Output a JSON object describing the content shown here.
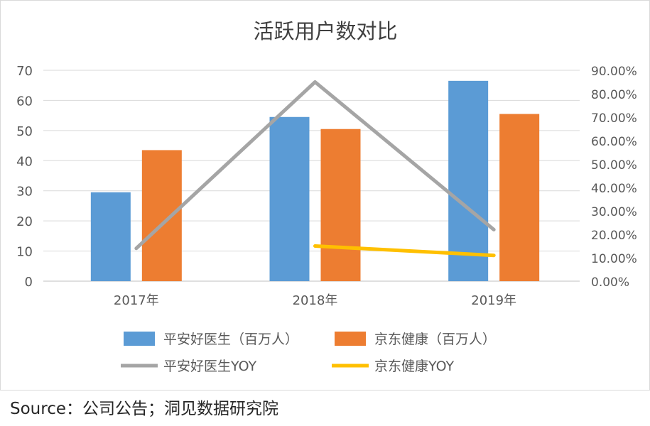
{
  "chart_data": {
    "type": "bar",
    "title": "活跃用户数对比",
    "categories": [
      "2017年",
      "2018年",
      "2019年"
    ],
    "series": [
      {
        "name": "平安好医生（百万人）",
        "kind": "bar",
        "axis": "left",
        "color": "#5b9bd5",
        "values": [
          29.5,
          54.5,
          66.5
        ]
      },
      {
        "name": "京东健康（百万人）",
        "kind": "bar",
        "axis": "left",
        "color": "#ed7d31",
        "values": [
          43.5,
          50.5,
          55.5
        ]
      },
      {
        "name": "平安好医生YOY",
        "kind": "line",
        "axis": "right",
        "color": "#a5a5a5",
        "values": [
          0.14,
          0.85,
          0.22
        ]
      },
      {
        "name": "京东健康YOY",
        "kind": "line",
        "axis": "right",
        "color": "#ffc000",
        "values": [
          null,
          0.15,
          0.11
        ]
      }
    ],
    "y_left": {
      "min": 0,
      "max": 70,
      "ticks": [
        "0",
        "10",
        "20",
        "30",
        "40",
        "50",
        "60",
        "70"
      ]
    },
    "y_right": {
      "min": 0,
      "max": 0.9,
      "ticks": [
        "0.00%",
        "10.00%",
        "20.00%",
        "30.00%",
        "40.00%",
        "50.00%",
        "60.00%",
        "70.00%",
        "80.00%",
        "90.00%"
      ]
    },
    "grid": true,
    "legend_position": "bottom"
  },
  "source_text": "Source：公司公告；洞见数据研究院"
}
